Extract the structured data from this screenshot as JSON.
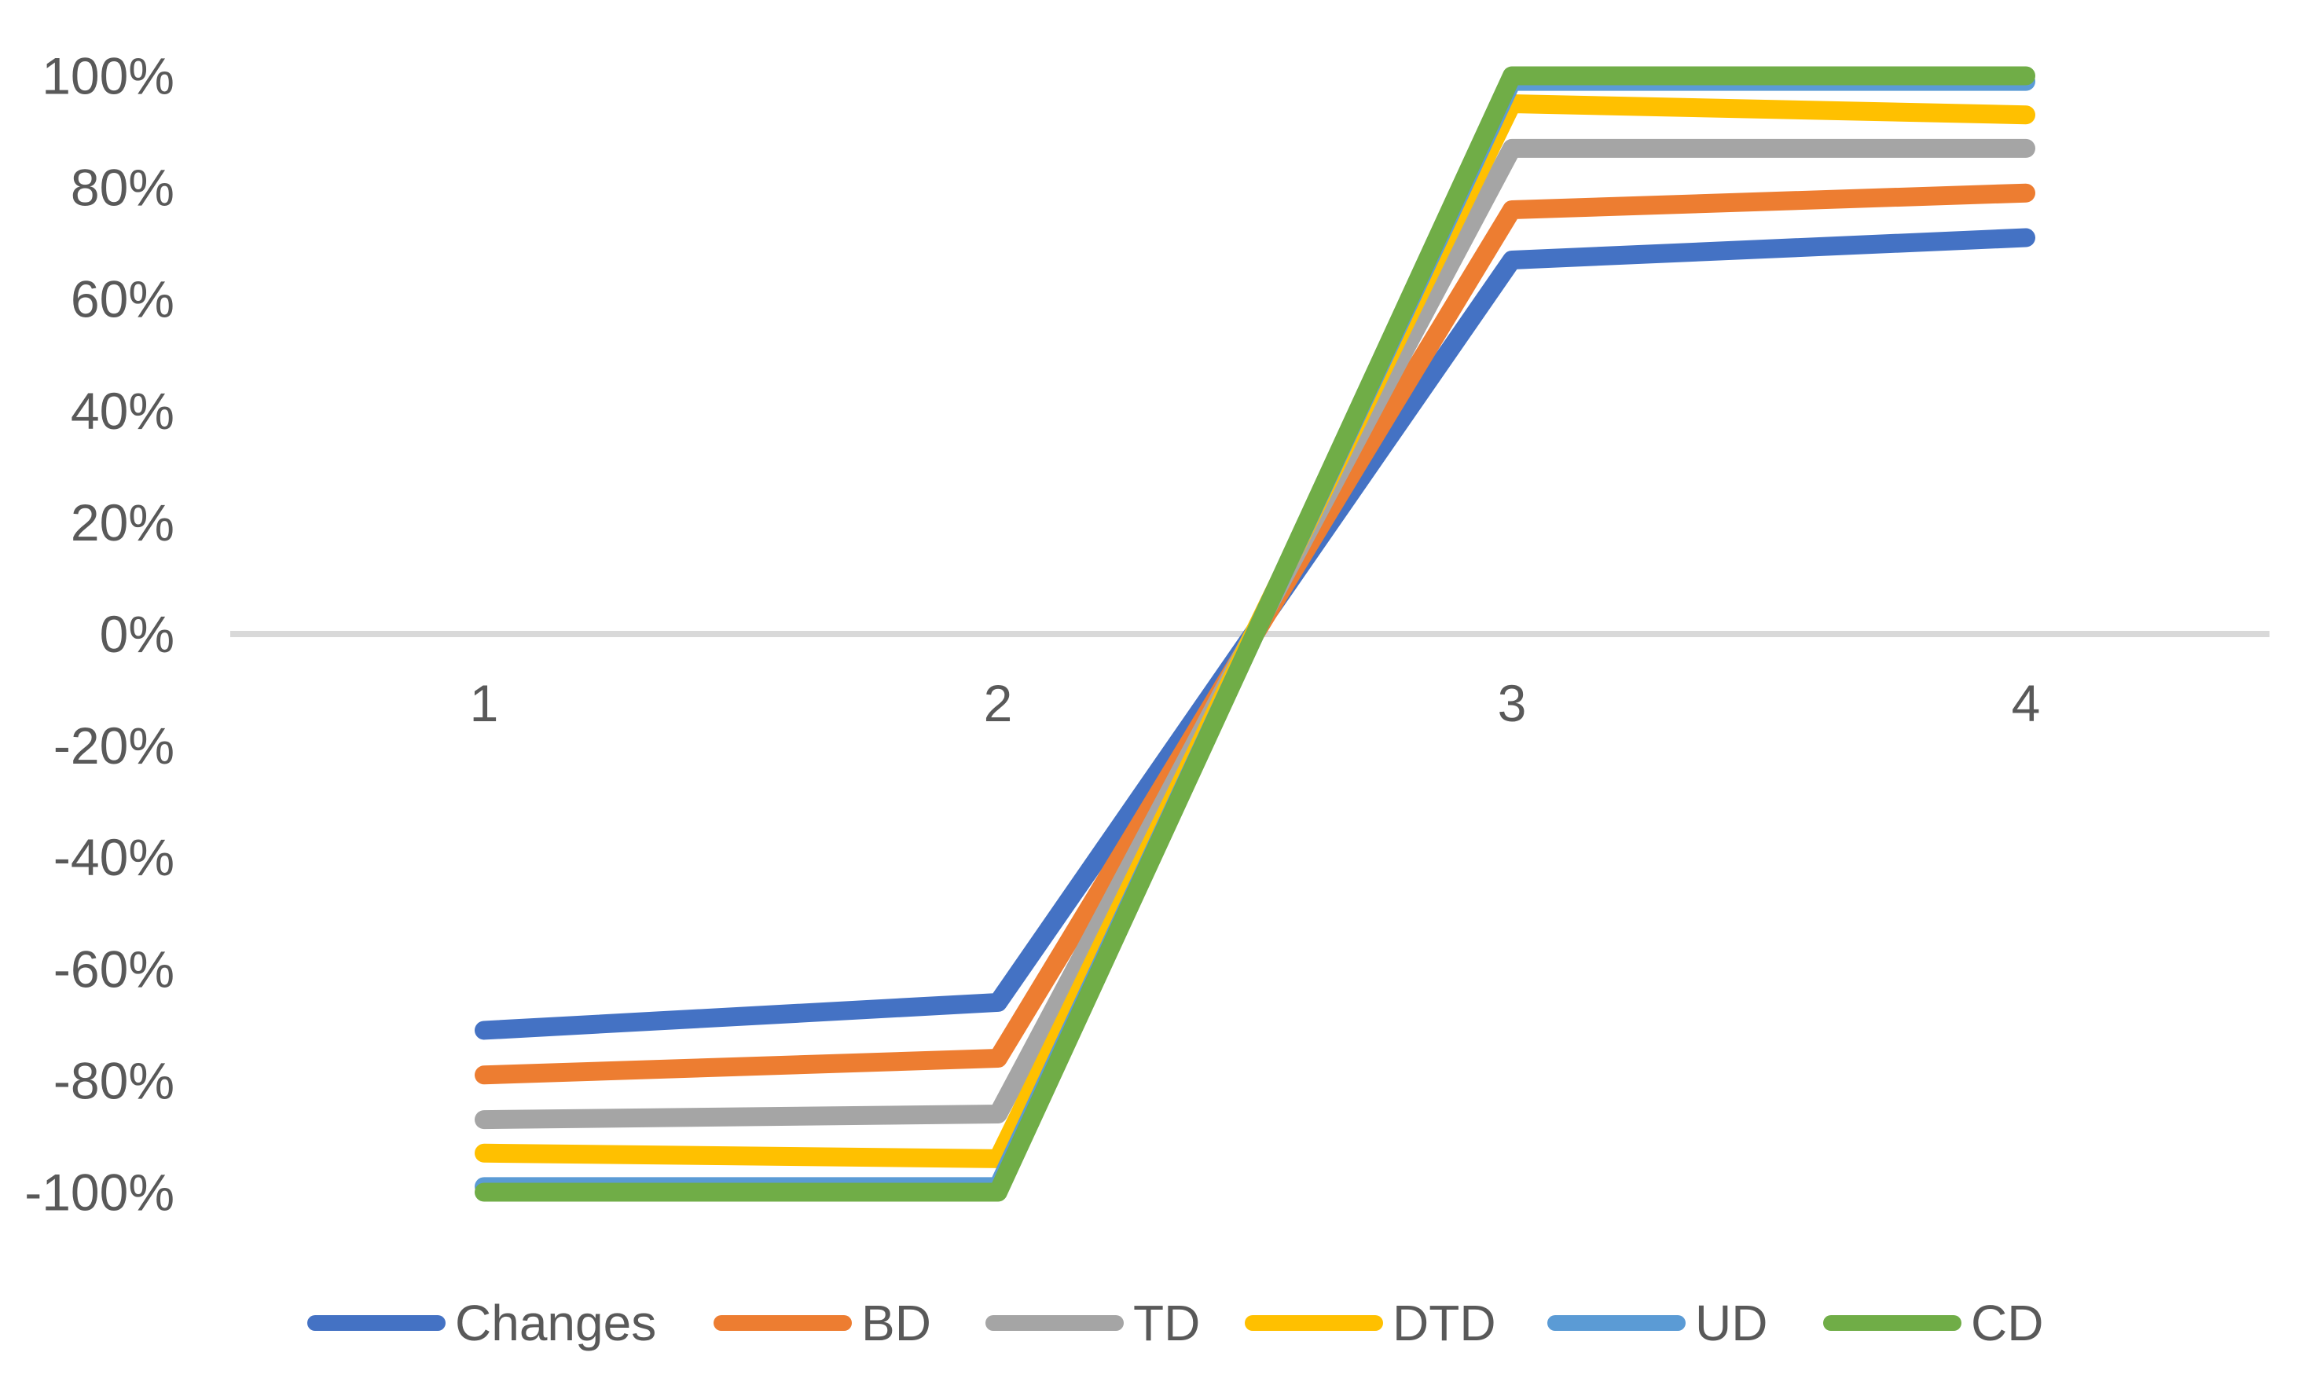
{
  "chart_data": {
    "type": "line",
    "x": [
      1,
      2,
      3,
      4
    ],
    "x_tick_labels": [
      "1",
      "2",
      "3",
      "4"
    ],
    "y_tick_labels": [
      "100%",
      "80%",
      "60%",
      "40%",
      "20%",
      "0%",
      "-20%",
      "-40%",
      "-60%",
      "-80%",
      "-100%"
    ],
    "y_tick_values": [
      100,
      80,
      60,
      40,
      20,
      0,
      -20,
      -40,
      -60,
      -80,
      -100
    ],
    "ylim": [
      -100,
      100
    ],
    "y_unit": "percent",
    "title": "",
    "xlabel": "",
    "ylabel": "",
    "grid": "zero-line-only",
    "legend_position": "bottom",
    "series": [
      {
        "name": "Changes",
        "color": "#4472C4",
        "values": [
          -71,
          -66,
          67,
          71
        ]
      },
      {
        "name": "BD",
        "color": "#ED7D31",
        "values": [
          -79,
          -76,
          76,
          79
        ]
      },
      {
        "name": "TD",
        "color": "#A5A5A5",
        "values": [
          -87,
          -86,
          87,
          87
        ]
      },
      {
        "name": "DTD",
        "color": "#FFC000",
        "values": [
          -93,
          -94,
          95,
          93
        ]
      },
      {
        "name": "UD",
        "color": "#5B9BD5",
        "values": [
          -99,
          -99,
          99,
          99
        ]
      },
      {
        "name": "CD",
        "color": "#70AD47",
        "values": [
          -100,
          -100,
          100,
          100
        ]
      }
    ],
    "colors": {
      "gridline": "#D9D9D9",
      "axis_text": "#595959",
      "background": "#FFFFFF"
    }
  }
}
